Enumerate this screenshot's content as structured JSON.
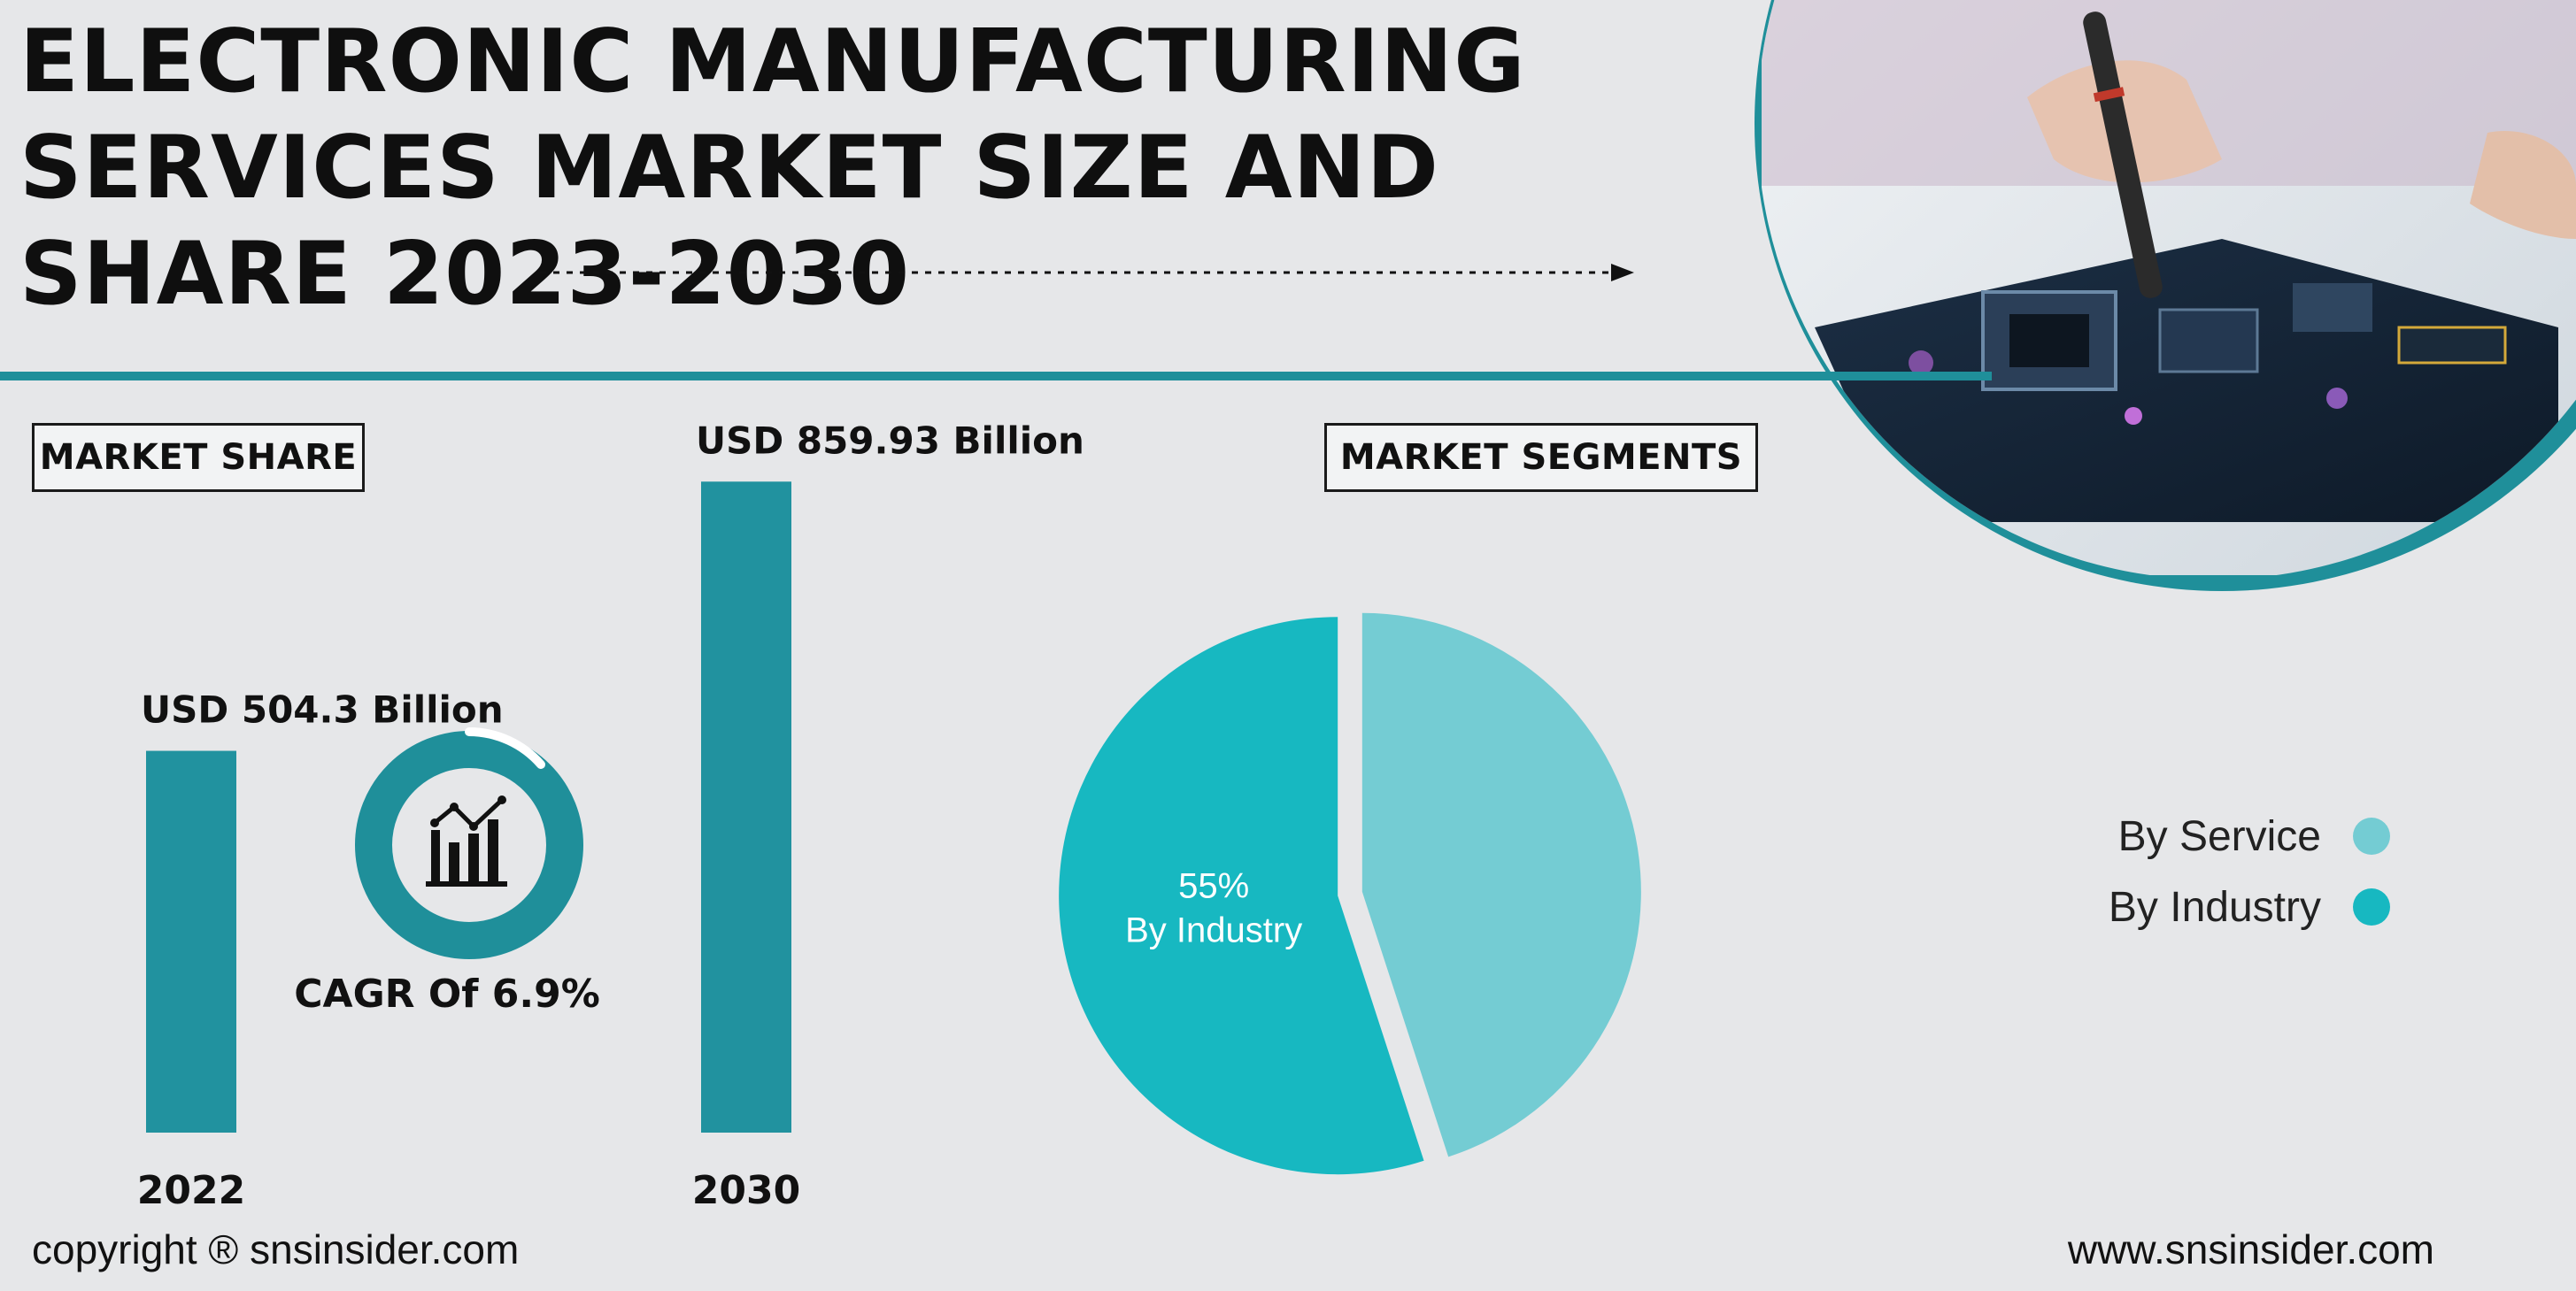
{
  "title": {
    "line1": "ELECTRONIC MANUFACTURING",
    "line2": "SERVICES MARKET SIZE AND",
    "line3": "SHARE 2023-2030"
  },
  "sections": {
    "market_share_label": "MARKET SHARE",
    "market_segments_label": "MARKET SEGMENTS"
  },
  "cagr": {
    "label": "CAGR Of 6.9%",
    "icon": "bar-line-chart-icon"
  },
  "colors": {
    "teal_dark": "#1f8f9a",
    "bar": "#21929f",
    "pie_service": "#74ccd3",
    "pie_industry": "#17b8c1",
    "background": "#e6e7e9"
  },
  "chart_data": [
    {
      "type": "bar",
      "categories": [
        "2022",
        "2030"
      ],
      "values": [
        504.3,
        859.93
      ],
      "data_labels": [
        "USD 504.3 Billion",
        "USD 859.93 Billion"
      ],
      "ylim": [
        0,
        900
      ],
      "grid": false,
      "legend": false
    },
    {
      "type": "pie",
      "slices": [
        {
          "name": "By Service",
          "value": 45,
          "color": "#74ccd3"
        },
        {
          "name": "By Industry",
          "value": 55,
          "color": "#17b8c1",
          "label_value": "55%"
        }
      ],
      "legend_placement": "right"
    }
  ],
  "legend_items": [
    {
      "label": "By Service",
      "color": "#74ccd3"
    },
    {
      "label": "By Industry",
      "color": "#17b8c1"
    }
  ],
  "footer": {
    "copyright": "copyright ® snsinsider.com",
    "website": "www.snsinsider.com"
  }
}
